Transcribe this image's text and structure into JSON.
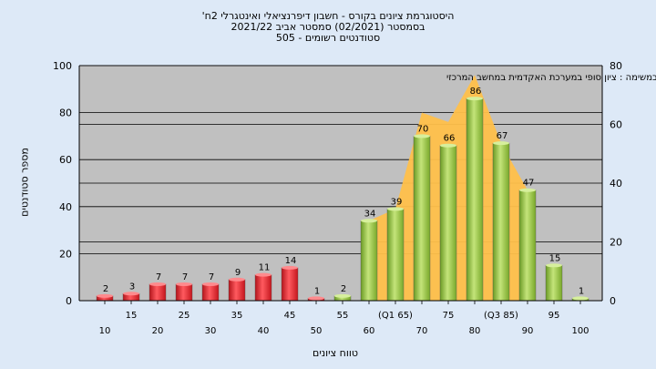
{
  "chart_data": {
    "type": "bar",
    "title_lines": [
      "'היסטוגרמת ציונים בקורס - חשבון דיפרנציאלי ואינטגרלי 2ח",
      "בסמסטר   (02/2021)  סמסטר אביב 2021/22",
      "505 - סטודנטים רשומים"
    ],
    "annotation": "במשימה : ציון סופי במערכת האקדמית במחשב המרכזי",
    "xlabel": "טווח ציונים",
    "ylabel": "מספר סטודנטים",
    "categories": [
      "10",
      "15",
      "20",
      "25",
      "30",
      "35",
      "40",
      "45",
      "50",
      "55",
      "60",
      "(Q1 65)",
      "70",
      "75",
      "80",
      "(Q3 85)",
      "90",
      "95",
      "100"
    ],
    "values": [
      2,
      3,
      7,
      7,
      7,
      9,
      11,
      14,
      1,
      2,
      34,
      39,
      70,
      66,
      86,
      67,
      47,
      15,
      1
    ],
    "bar_colors": [
      "red",
      "red",
      "red",
      "red",
      "red",
      "red",
      "red",
      "red",
      "red",
      "green",
      "green",
      "green",
      "green",
      "green",
      "green",
      "green",
      "green",
      "green",
      "green"
    ],
    "ylim_left": [
      0,
      100
    ],
    "yticks_left": [
      0,
      20,
      40,
      60,
      80,
      100
    ],
    "ylim_right": [
      0,
      80
    ],
    "yticks_right": [
      0,
      20,
      40,
      60,
      80
    ],
    "grid": true,
    "colors": {
      "plot_bg": "#c0c0c0",
      "red_bar": "#e8212a",
      "green_bar": "#8fc43a",
      "area": "#ffc04a",
      "grid": "#000000"
    }
  }
}
